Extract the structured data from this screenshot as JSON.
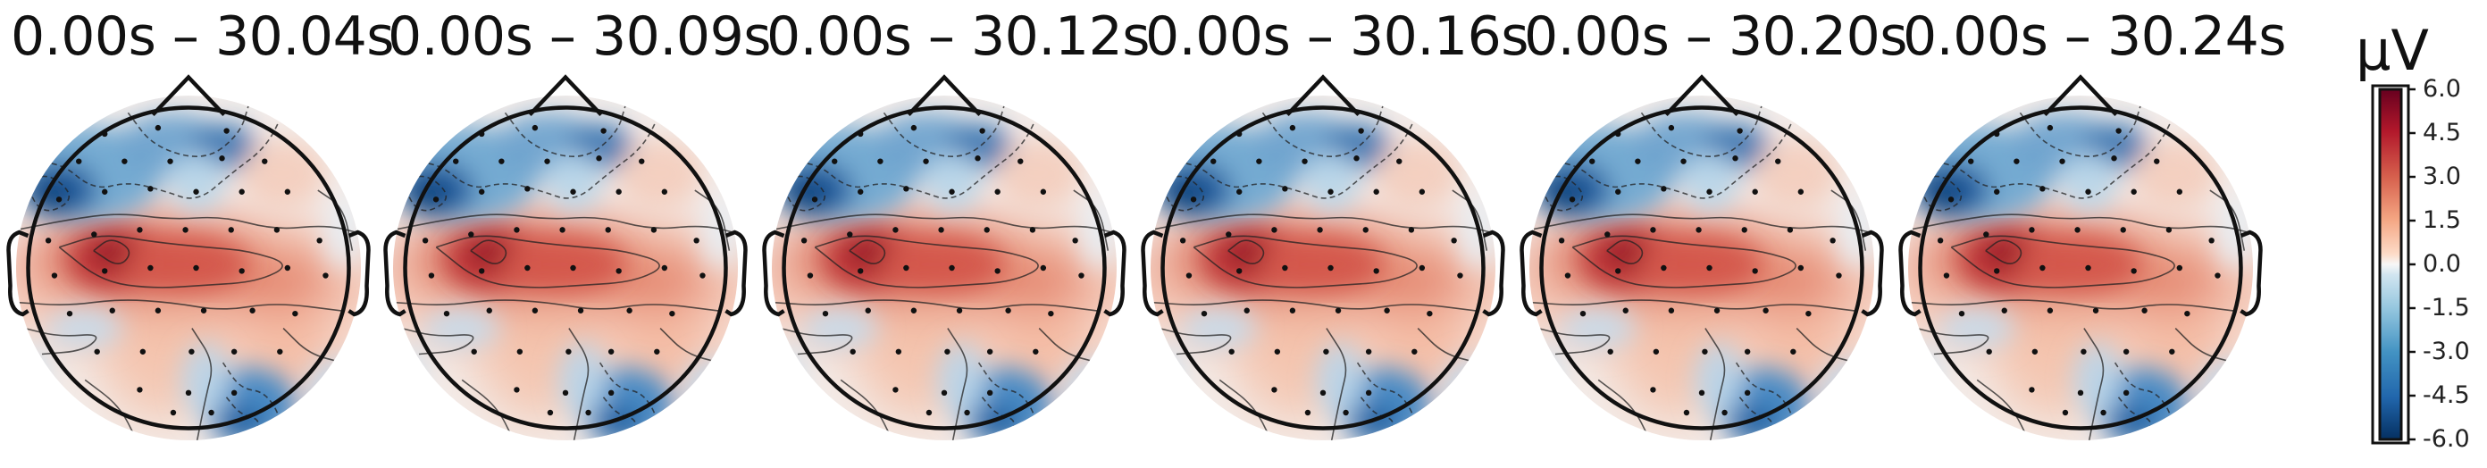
{
  "chart_data": {
    "type": "heatmap",
    "panels": [
      {
        "title": "0.00s – 30.04s"
      },
      {
        "title": "0.00s – 30.09s"
      },
      {
        "title": "0.00s – 30.12s"
      },
      {
        "title": "0.00s – 30.16s"
      },
      {
        "title": "0.00s – 30.20s"
      },
      {
        "title": "0.00s – 30.24s"
      }
    ],
    "colorbar": {
      "unit": "µV",
      "vmin": -6.0,
      "vmax": 6.0,
      "colormap": "RdBu_r",
      "ticks": [
        "6.0",
        "4.5",
        "3.0",
        "1.5",
        "0.0",
        "-1.5",
        "-3.0",
        "-4.5",
        "-6.0"
      ]
    },
    "topography": {
      "frontal_left": "negative (≈ -5.5 µV)",
      "frontal_midline": "negative (≈ -3 µV)",
      "central_left": "positive peak (≈ +5.5 µV)",
      "central_right": "positive (≈ +3 µV)",
      "occipital_right": "negative (≈ -5 µV)",
      "temporal_left_inferior": "slightly negative"
    }
  }
}
